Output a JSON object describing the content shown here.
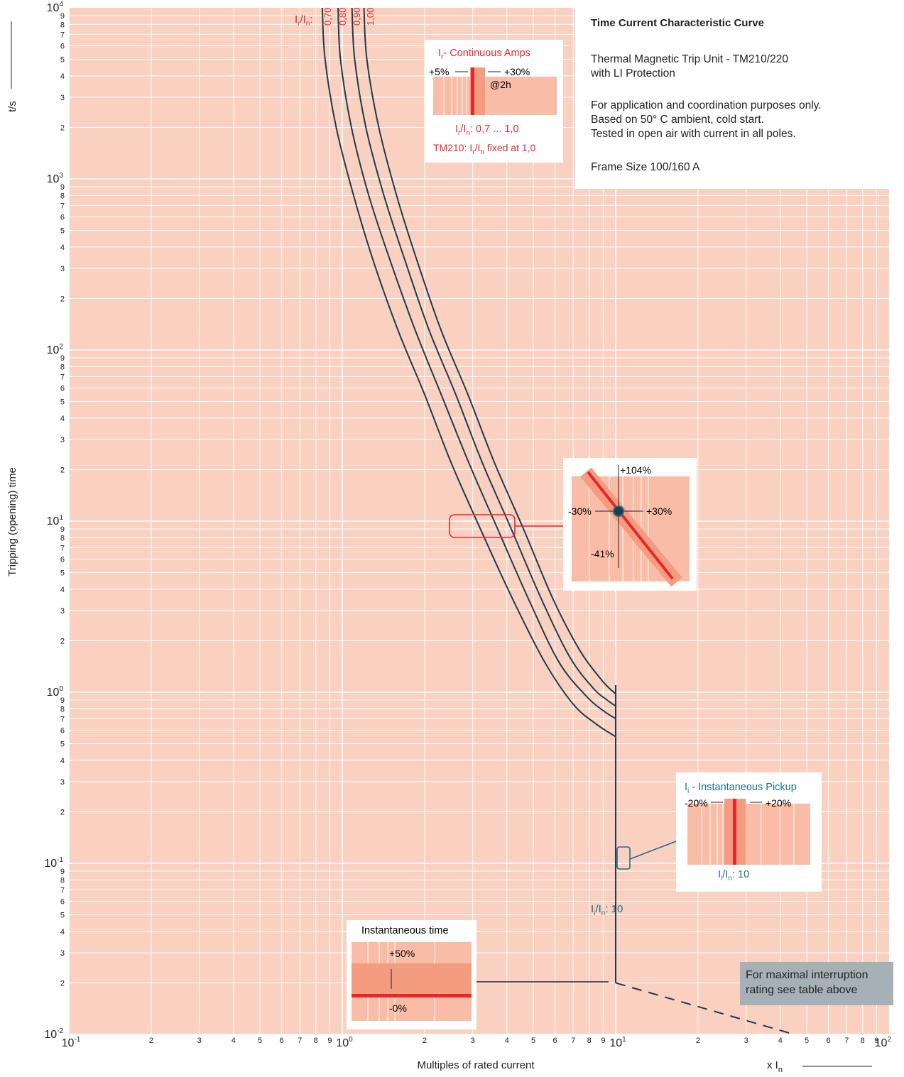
{
  "info": {
    "title": "Time Current Characteristic Curve",
    "line1": "Thermal Magnetic Trip Unit - TM210/220",
    "line2": "with LI Protection",
    "line3": "For application and coordination purposes only.",
    "line4": "Based on 50° C ambient, cold start.",
    "line5": "Tested in open air with current in all poles.",
    "line6": "Frame Size 100/160 A"
  },
  "note": "For maximal interruption rating see table above",
  "axes": {
    "ylabel": "Tripping (opening) time",
    "yunit": "t/s",
    "xlabel": "Multiples of rated current",
    "xunit_main": "x I",
    "xunit_sub": "n"
  },
  "curve_labels": {
    "prefix_main": "I",
    "prefix_sub1": "r",
    "prefix_mid": "/I",
    "prefix_sub2": "n",
    "prefix_tail": ":",
    "settings": [
      "0,70",
      "0,80",
      "0,90",
      "1,00"
    ]
  },
  "inst_label": {
    "main": "I",
    "sub1": "i",
    "mid": "/I",
    "sub2": "n",
    "tail": ":  10"
  },
  "box_ir": {
    "title_sub": "r",
    "title": "- Continuous Amps",
    "minus": "+5%",
    "plus": "+30%",
    "at": "@2h",
    "range": ": 0,7 ... 1,0",
    "range_pre": "I",
    "range_sub1": "r",
    "range_mid": "/I",
    "range_sub2": "n",
    "fixed_pre": "TM210: I",
    "fixed_sub1": "r",
    "fixed_mid": "/I",
    "fixed_sub2": "n",
    "fixed_tail": " fixed at 1,0"
  },
  "box_tol": {
    "up": "+104%",
    "left": "-30%",
    "right": "+30%",
    "down": "-41%"
  },
  "box_ii": {
    "title_pre": "I",
    "title_sub": "i",
    "title": " - Instantaneous Pickup",
    "minus": "-20%",
    "plus": "+20%",
    "range_pre": "I",
    "range_sub1": "i",
    "range_mid": "/I",
    "range_sub2": "n",
    "range_tail": ": 10"
  },
  "box_time": {
    "title": "Instantaneous time",
    "plus": "+50%",
    "minus": "-0%"
  },
  "chart_data": {
    "type": "line",
    "x_scale": "log",
    "y_scale": "log",
    "xlim": [
      0.1,
      100
    ],
    "ylim": [
      0.01,
      10000
    ],
    "x_decade_labels": [
      {
        "base": "10",
        "exp": "-1",
        "value": 0.1
      },
      {
        "base": "10",
        "exp": "0",
        "value": 1
      },
      {
        "base": "10",
        "exp": "1",
        "value": 10
      },
      {
        "base": "10",
        "exp": "2",
        "value": 100
      }
    ],
    "y_decade_labels": [
      {
        "base": "10",
        "exp": "-2",
        "value": 0.01
      },
      {
        "base": "10",
        "exp": "-1",
        "value": 0.1
      },
      {
        "base": "10",
        "exp": "0",
        "value": 1
      },
      {
        "base": "10",
        "exp": "1",
        "value": 10
      },
      {
        "base": "10",
        "exp": "2",
        "value": 100
      },
      {
        "base": "10",
        "exp": "3",
        "value": 1000
      },
      {
        "base": "10",
        "exp": "4",
        "value": 10000
      }
    ],
    "minor_tick_labels": [
      "2",
      "3",
      "4",
      "5",
      "6",
      "7",
      "8",
      "9"
    ],
    "grid": true,
    "colors": {
      "plot_bg": "#fad1c0",
      "grid": "#ffffff",
      "curve": "#1b3b4f",
      "accent_red": "#e8262b",
      "accent_blue": "#1f6f86",
      "band": "#f9bca6",
      "band_dark": "#f49c80"
    },
    "series": [
      {
        "name": "0,70",
        "x": [
          0.845,
          0.865,
          0.95,
          1.1,
          1.3,
          1.6,
          2.0,
          2.5,
          3.2,
          4.2,
          5.5,
          7.0,
          8.5,
          10
        ],
        "y": [
          10000,
          5000,
          2000,
          800,
          330,
          130,
          55,
          22,
          9,
          3.5,
          1.5,
          0.85,
          0.65,
          0.55
        ]
      },
      {
        "name": "0,80",
        "x": [
          0.965,
          0.985,
          1.08,
          1.25,
          1.5,
          1.85,
          2.3,
          2.9,
          3.7,
          4.8,
          6.2,
          7.8,
          9.0,
          10
        ],
        "y": [
          10000,
          5000,
          2000,
          800,
          330,
          130,
          55,
          22,
          9,
          3.5,
          1.5,
          0.95,
          0.78,
          0.7
        ]
      },
      {
        "name": "0,90",
        "x": [
          1.085,
          1.11,
          1.22,
          1.42,
          1.7,
          2.08,
          2.6,
          3.25,
          4.15,
          5.35,
          6.8,
          8.3,
          9.3,
          10
        ],
        "y": [
          10000,
          5000,
          2000,
          800,
          330,
          130,
          55,
          22,
          9,
          3.5,
          1.6,
          1.05,
          0.9,
          0.83
        ]
      },
      {
        "name": "1,00",
        "x": [
          1.2,
          1.23,
          1.36,
          1.58,
          1.88,
          2.3,
          2.88,
          3.6,
          4.6,
          5.9,
          7.4,
          8.8,
          9.5,
          10
        ],
        "y": [
          10000,
          5000,
          2000,
          800,
          330,
          130,
          55,
          22,
          9,
          3.5,
          1.75,
          1.2,
          1.05,
          0.98
        ]
      }
    ],
    "instantaneous": {
      "x": 10,
      "y_top": 1.1,
      "y_bottom": 0.02,
      "dashed_to": [
        45,
        0.01
      ]
    }
  }
}
